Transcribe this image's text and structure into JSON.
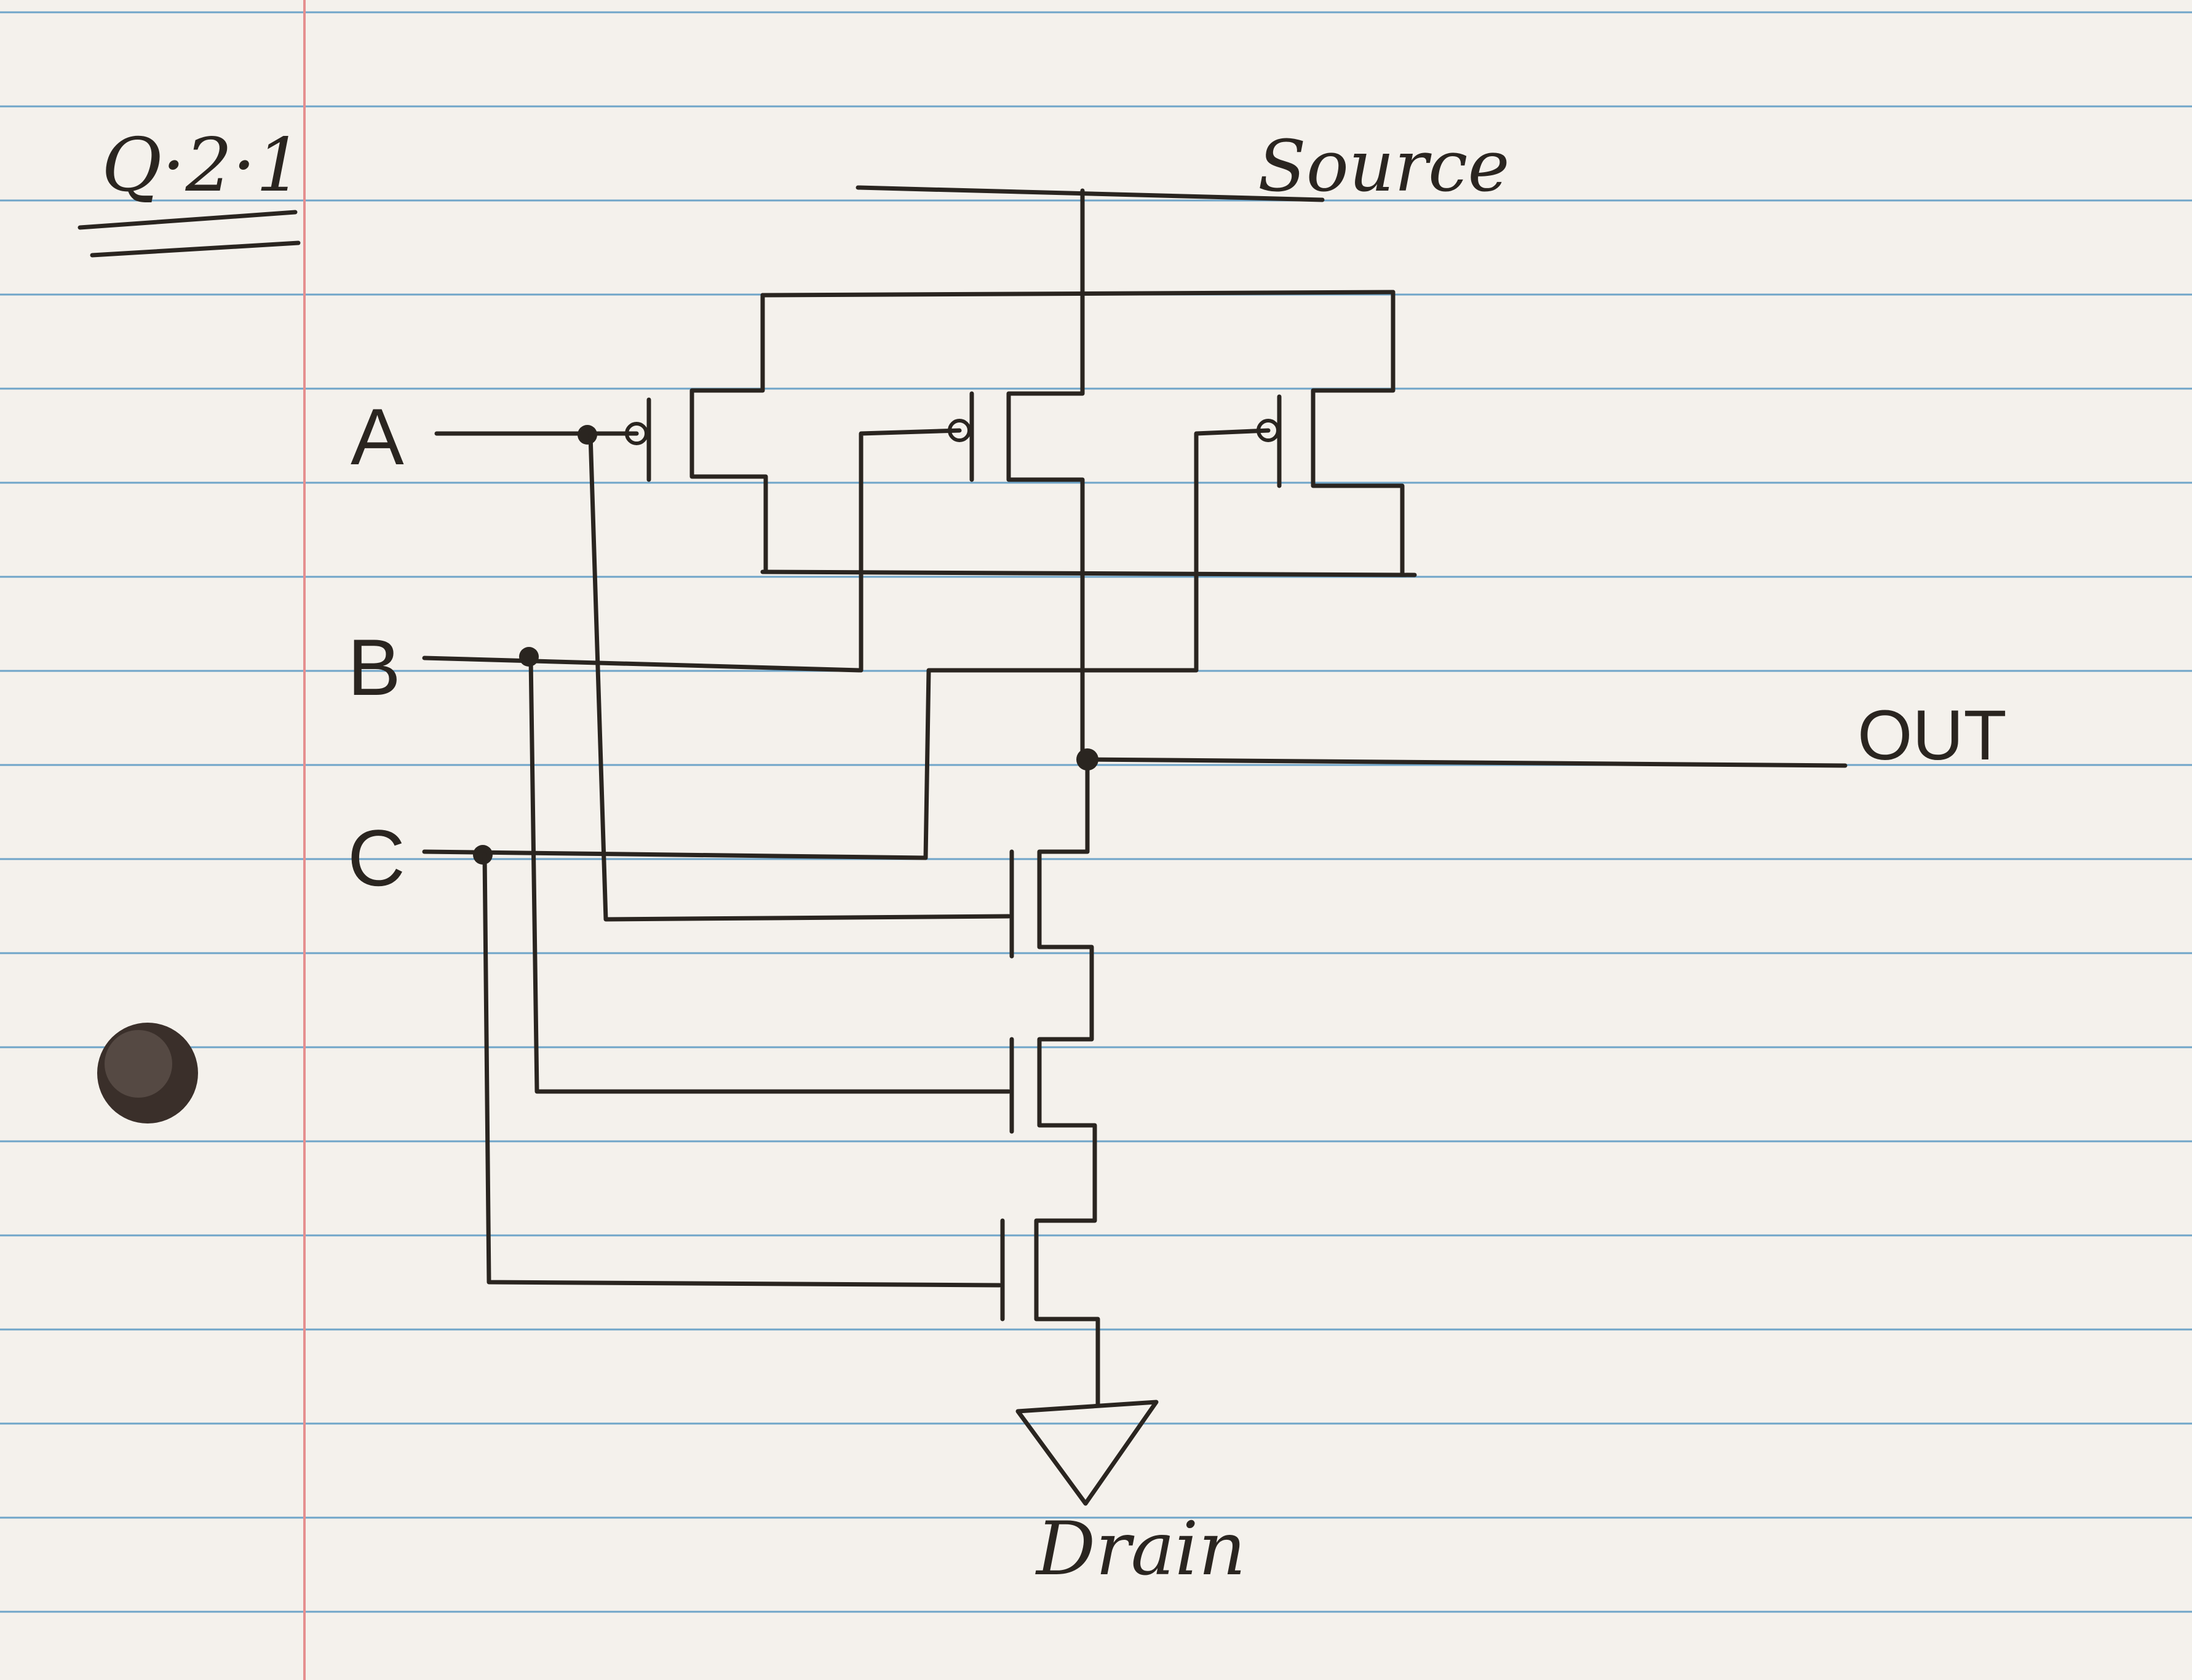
{
  "title": "Q·2·1",
  "nodes": {
    "source": "Source",
    "drain": "Drain",
    "out": "OUT"
  },
  "inputs": {
    "a": "A",
    "b": "B",
    "c": "C"
  },
  "colors": {
    "paper": "#f4f1ec",
    "ruled_line": "#6fa5c9",
    "margin_line": "#e58f8f",
    "ink": "#2a2520",
    "punch_hole": "#3a2f2a"
  }
}
